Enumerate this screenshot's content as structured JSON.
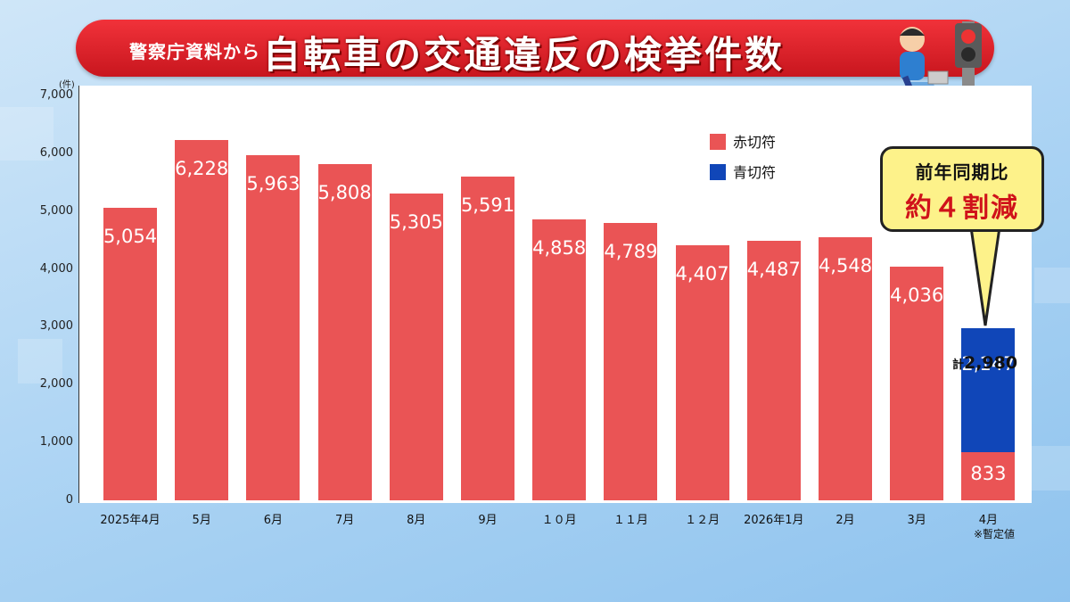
{
  "banner": {
    "source": "警察庁資料から",
    "title": "自転車の交通違反の検挙件数"
  },
  "callout": {
    "line1": "前年同期比",
    "line2": "約４割減"
  },
  "total": {
    "prefix": "計",
    "value": "2,980"
  },
  "note": "※暫定値",
  "chart_data": {
    "type": "bar",
    "stacked": true,
    "unit": "(件)",
    "ylim": [
      0,
      7000
    ],
    "yticks": [
      "0",
      "1,000",
      "2,000",
      "3,000",
      "4,000",
      "5,000",
      "6,000",
      "7,000"
    ],
    "categories": [
      "2025年4月",
      "5月",
      "6月",
      "7月",
      "8月",
      "9月",
      "１０月",
      "１１月",
      "１２月",
      "2026年1月",
      "2月",
      "3月",
      "4月"
    ],
    "series": [
      {
        "name": "赤切符",
        "color": "#ea5455",
        "values": [
          5054,
          6228,
          5963,
          5808,
          5305,
          5591,
          4858,
          4789,
          4407,
          4487,
          4548,
          4036,
          833
        ],
        "labels": [
          "5,054",
          "6,228",
          "5,963",
          "5,808",
          "5,305",
          "5,591",
          "4,858",
          "4,789",
          "4,407",
          "4,487",
          "4,548",
          "4,036",
          "833"
        ]
      },
      {
        "name": "青切符",
        "color": "#1046b8",
        "values": [
          0,
          0,
          0,
          0,
          0,
          0,
          0,
          0,
          0,
          0,
          0,
          0,
          2147
        ],
        "labels": [
          "",
          "",
          "",
          "",
          "",
          "",
          "",
          "",
          "",
          "",
          "",
          "",
          "2,147"
        ]
      }
    ],
    "legend": "top-right"
  }
}
